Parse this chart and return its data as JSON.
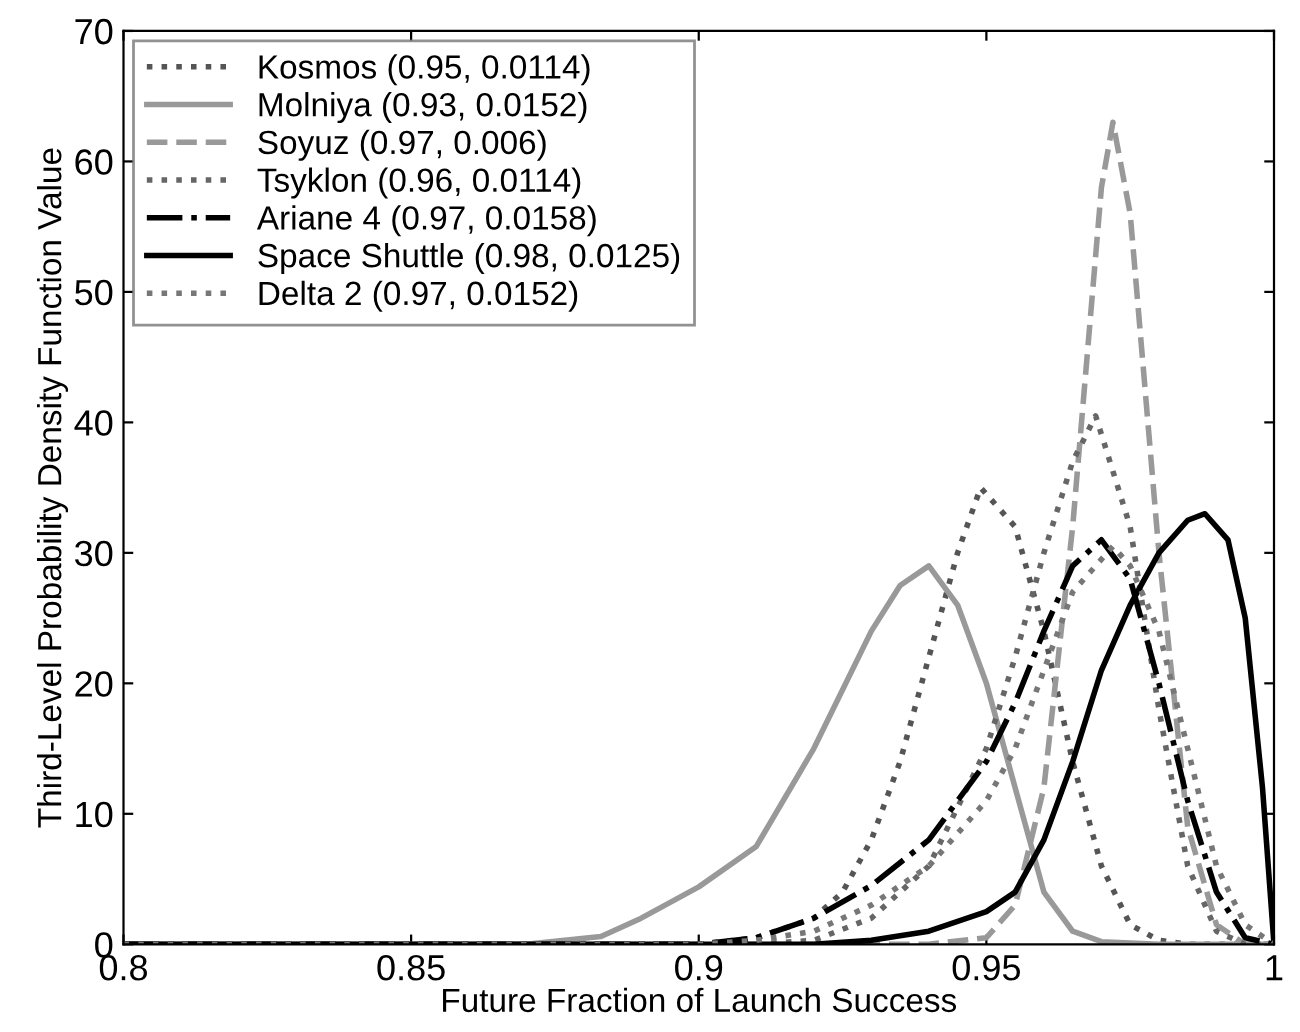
{
  "chart_data": {
    "type": "line",
    "xlabel": "Future Fraction of Launch Success",
    "ylabel": "Third-Level Probability Density Function Value",
    "xlim": [
      0.8,
      1
    ],
    "xticks": [
      0.8,
      0.85,
      0.9,
      0.95,
      1
    ],
    "ylim": [
      0,
      70
    ],
    "yticks": [
      0,
      10,
      20,
      30,
      40,
      50,
      60,
      70
    ],
    "grid": false,
    "legend": "top left",
    "marker": "none",
    "series": [
      {
        "name": "Kosmos (0.95, 0.0114)",
        "color": "#555555",
        "line_style": "dotted",
        "x": [
          0.8,
          0.9,
          0.91,
          0.92,
          0.925,
          0.93,
          0.935,
          0.94,
          0.945,
          0.949,
          0.955,
          0.96,
          0.965,
          0.97,
          0.975,
          0.98,
          0.985,
          1
        ],
        "values": [
          0,
          0,
          0.5,
          2,
          4,
          8,
          14,
          22,
          30,
          35,
          32,
          24,
          14,
          6,
          1.5,
          0.3,
          0,
          0
        ]
      },
      {
        "name": "Molniya (0.93, 0.0152)",
        "color": "#999999",
        "line_style": "solid",
        "x": [
          0.8,
          0.87,
          0.883,
          0.89,
          0.9,
          0.91,
          0.92,
          0.93,
          0.935,
          0.94,
          0.945,
          0.95,
          0.955,
          0.96,
          0.965,
          0.97,
          0.98,
          1
        ],
        "values": [
          0,
          0,
          0.6,
          2,
          4.4,
          7.5,
          15,
          24,
          27.5,
          29,
          26,
          20,
          12,
          4,
          1,
          0.2,
          0,
          0
        ]
      },
      {
        "name": "Soyuz (0.97, 0.006)",
        "color": "#999999",
        "line_style": "dashed",
        "x": [
          0.8,
          0.94,
          0.95,
          0.955,
          0.96,
          0.965,
          0.97,
          0.972,
          0.975,
          0.98,
          0.985,
          0.99,
          0.995,
          1
        ],
        "values": [
          0,
          0,
          0.5,
          3,
          12,
          32,
          58,
          63,
          56,
          30,
          9,
          1.5,
          0,
          0
        ]
      },
      {
        "name": "Tsyklon (0.96, 0.0114)",
        "color": "#666666",
        "line_style": "dotted",
        "x": [
          0.8,
          0.91,
          0.92,
          0.93,
          0.94,
          0.95,
          0.955,
          0.96,
          0.965,
          0.969,
          0.975,
          0.98,
          0.985,
          0.99,
          0.995,
          1
        ],
        "values": [
          0,
          0,
          0.3,
          2,
          6,
          15,
          22,
          30,
          37,
          40.5,
          32,
          18,
          6,
          1,
          0,
          0
        ]
      },
      {
        "name": "Ariane 4 (0.97, 0.0158)",
        "color": "#000000",
        "line_style": "dashdot",
        "x": [
          0.8,
          0.9,
          0.91,
          0.92,
          0.93,
          0.94,
          0.95,
          0.955,
          0.96,
          0.965,
          0.97,
          0.975,
          0.98,
          0.985,
          0.99,
          0.995,
          1
        ],
        "values": [
          0,
          0,
          0.5,
          2,
          4.5,
          8,
          14,
          18.5,
          24,
          29,
          31,
          28,
          20,
          11,
          4,
          0.5,
          0
        ]
      },
      {
        "name": "Space Shuttle (0.98, 0.0125)",
        "color": "#000000",
        "line_style": "solid",
        "x": [
          0.8,
          0.92,
          0.93,
          0.94,
          0.95,
          0.955,
          0.96,
          0.965,
          0.97,
          0.975,
          0.98,
          0.985,
          0.988,
          0.992,
          0.995,
          0.998,
          1
        ],
        "values": [
          0,
          0,
          0.3,
          1,
          2.5,
          4,
          8,
          14,
          21,
          26,
          30,
          32.5,
          33,
          31,
          25,
          12,
          0
        ]
      },
      {
        "name": "Delta 2 (0.97, 0.0152)",
        "color": "#777777",
        "line_style": "dotted",
        "x": [
          0.8,
          0.9,
          0.91,
          0.92,
          0.93,
          0.94,
          0.95,
          0.955,
          0.96,
          0.965,
          0.972,
          0.975,
          0.98,
          0.985,
          0.99,
          0.995,
          1
        ],
        "values": [
          0,
          0,
          0.3,
          1,
          3,
          6,
          11,
          15,
          21,
          27,
          30.5,
          29,
          24,
          15,
          6,
          1.5,
          0
        ]
      }
    ]
  }
}
